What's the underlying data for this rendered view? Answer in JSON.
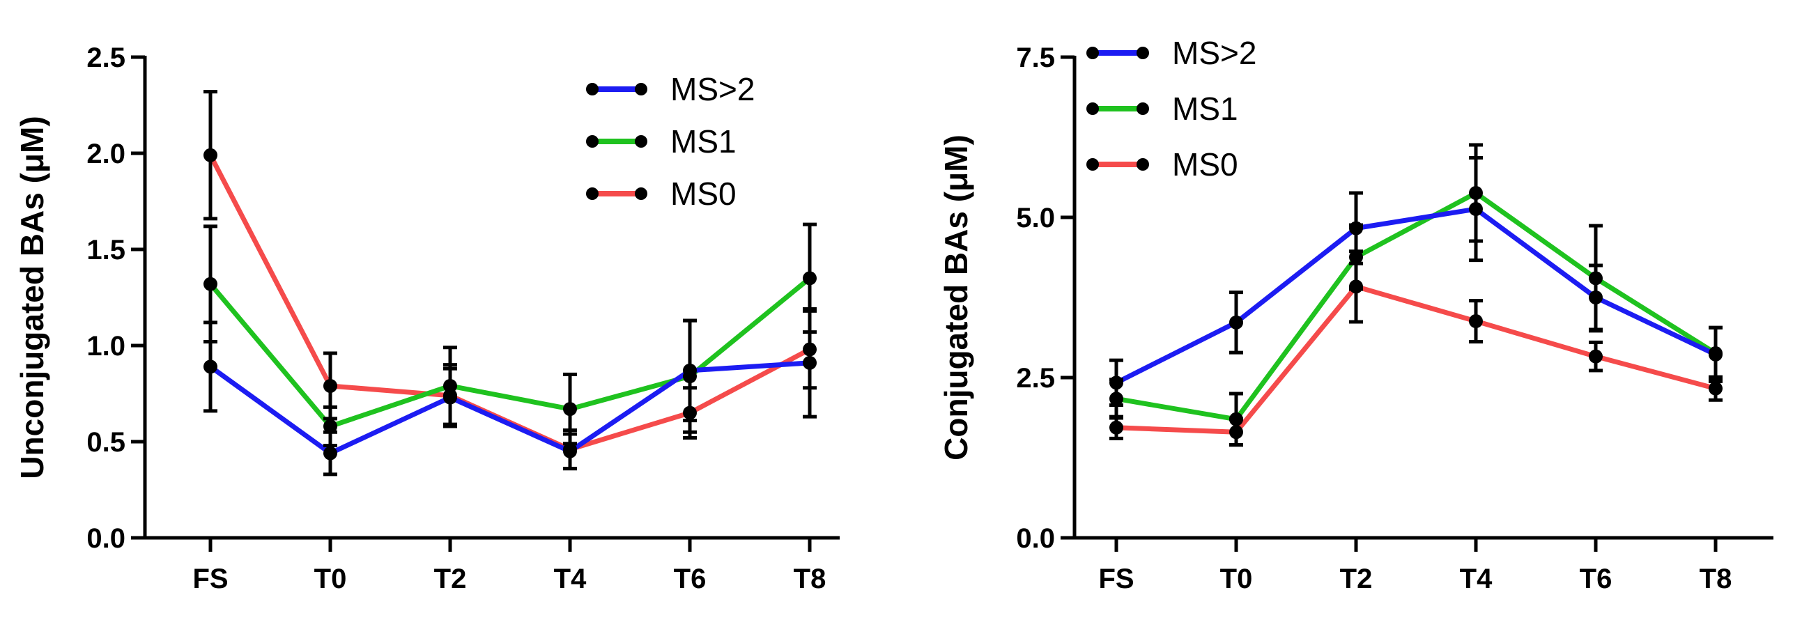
{
  "chart_data": [
    {
      "type": "line",
      "title": "",
      "xlabel": "",
      "ylabel": "Unconjugated BAs (μM)",
      "categories": [
        "FS",
        "T0",
        "T2",
        "T4",
        "T6",
        "T8"
      ],
      "ylim": [
        0,
        2.5
      ],
      "yticks": [
        0.0,
        0.5,
        1.0,
        1.5,
        2.0,
        2.5
      ],
      "ytick_labels": [
        "0.0",
        "0.5",
        "1.0",
        "1.5",
        "2.0",
        "2.5"
      ],
      "grid": false,
      "legend_position": "top-right",
      "series": [
        {
          "name": "MS>2",
          "color": "#1c1cf2",
          "values": [
            0.89,
            0.44,
            0.73,
            0.45,
            0.87,
            0.91
          ],
          "errors": [
            0.23,
            0.11,
            0.15,
            0.09,
            0.26,
            0.28
          ]
        },
        {
          "name": "MS1",
          "color": "#1fc21f",
          "values": [
            1.32,
            0.58,
            0.79,
            0.67,
            0.84,
            1.35
          ],
          "errors": [
            0.3,
            0.1,
            0.2,
            0.18,
            0.29,
            0.28
          ]
        },
        {
          "name": "MS0",
          "color": "#f54b4b",
          "values": [
            1.99,
            0.79,
            0.74,
            0.46,
            0.65,
            0.98
          ],
          "errors": [
            0.33,
            0.17,
            0.16,
            0.1,
            0.13,
            0.2
          ]
        }
      ]
    },
    {
      "type": "line",
      "title": "",
      "xlabel": "",
      "ylabel": "Conjugated BAs (μM)",
      "categories": [
        "FS",
        "T0",
        "T2",
        "T4",
        "T6",
        "T8"
      ],
      "ylim": [
        0,
        7.5
      ],
      "yticks": [
        0.0,
        2.5,
        5.0,
        7.5
      ],
      "ytick_labels": [
        "0.0",
        "2.5",
        "5.0",
        "7.5"
      ],
      "grid": false,
      "legend_position": "top-left",
      "series": [
        {
          "name": "MS>2",
          "color": "#1c1cf2",
          "values": [
            2.42,
            3.36,
            4.83,
            5.13,
            3.75,
            2.86
          ],
          "errors": [
            0.35,
            0.47,
            0.55,
            0.8,
            0.5,
            0.42
          ]
        },
        {
          "name": "MS1",
          "color": "#1fc21f",
          "values": [
            2.17,
            1.85,
            4.38,
            5.38,
            4.05,
            2.88
          ],
          "errors": [
            0.3,
            0.4,
            0.5,
            0.75,
            0.82,
            0.4
          ]
        },
        {
          "name": "MS0",
          "color": "#f54b4b",
          "values": [
            1.72,
            1.65,
            3.92,
            3.38,
            2.83,
            2.33
          ],
          "errors": [
            0.17,
            0.2,
            0.55,
            0.32,
            0.22,
            0.18
          ]
        }
      ]
    }
  ]
}
